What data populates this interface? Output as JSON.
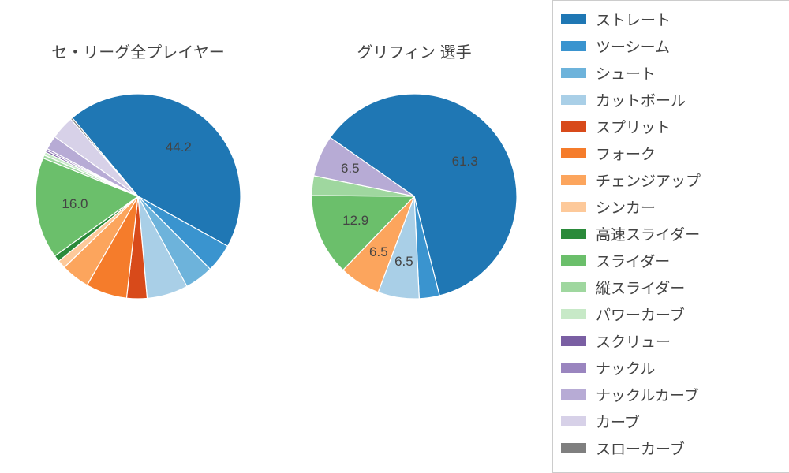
{
  "chart1": {
    "title": "セ・リーグ全プレイヤー",
    "type": "pie",
    "startAngleDeg": -40,
    "direction": "clockwise",
    "radius": 130,
    "slices": [
      {
        "name": "ストレート",
        "value": 44.2,
        "color": "#1f77b4",
        "label": "44.2",
        "labelR": 0.62
      },
      {
        "name": "ツーシーム",
        "value": 4.5,
        "color": "#3a94cf"
      },
      {
        "name": "シュート",
        "value": 4.5,
        "color": "#6db3db"
      },
      {
        "name": "カットボール",
        "value": 6.5,
        "color": "#a9cfe7"
      },
      {
        "name": "スプリット",
        "value": 3.2,
        "color": "#d84a1a"
      },
      {
        "name": "フォーク",
        "value": 6.5,
        "color": "#f57c2b"
      },
      {
        "name": "チェンジアップ",
        "value": 4.5,
        "color": "#fca55d"
      },
      {
        "name": "シンカー",
        "value": 1.3,
        "color": "#fdc99a"
      },
      {
        "name": "高速スライダー",
        "value": 1.0,
        "color": "#2a8a3a"
      },
      {
        "name": "スライダー",
        "value": 16.0,
        "color": "#6bbf6b",
        "label": "16.0",
        "labelR": 0.62
      },
      {
        "name": "縦スライダー",
        "value": 0.5,
        "color": "#9fd79f"
      },
      {
        "name": "パワーカーブ",
        "value": 0.5,
        "color": "#c7e9c7"
      },
      {
        "name": "スクリュー",
        "value": 0.3,
        "color": "#7a5fa3"
      },
      {
        "name": "ナックル",
        "value": 0.3,
        "color": "#9a85bf"
      },
      {
        "name": "ナックルカーブ",
        "value": 2.2,
        "color": "#b7abd5"
      },
      {
        "name": "カーブ",
        "value": 3.7,
        "color": "#d7d1e8"
      },
      {
        "name": "スローカーブ",
        "value": 0.3,
        "color": "#7f7f7f"
      }
    ]
  },
  "chart2": {
    "title": "グリフィン 選手",
    "type": "pie",
    "startAngleDeg": -55,
    "direction": "clockwise",
    "radius": 130,
    "slices": [
      {
        "name": "ストレート",
        "value": 61.3,
        "color": "#1f77b4",
        "label": "61.3",
        "labelR": 0.6
      },
      {
        "name": "ツーシーム",
        "value": 3.2,
        "color": "#3a94cf"
      },
      {
        "name": "カットボール",
        "value": 6.5,
        "color": "#a9cfe7",
        "label": "6.5",
        "labelR": 0.65
      },
      {
        "name": "チェンジアップ",
        "value": 6.5,
        "color": "#fca55d",
        "label": "6.5",
        "labelR": 0.65
      },
      {
        "name": "スライダー",
        "value": 12.9,
        "color": "#6bbf6b",
        "label": "12.9",
        "labelR": 0.62
      },
      {
        "name": "縦スライダー",
        "value": 3.1,
        "color": "#9fd79f"
      },
      {
        "name": "ナックルカーブ",
        "value": 6.5,
        "color": "#b7abd5",
        "label": "6.5",
        "labelR": 0.68
      }
    ]
  },
  "legend": {
    "items": [
      {
        "label": "ストレート",
        "color": "#1f77b4"
      },
      {
        "label": "ツーシーム",
        "color": "#3a94cf"
      },
      {
        "label": "シュート",
        "color": "#6db3db"
      },
      {
        "label": "カットボール",
        "color": "#a9cfe7"
      },
      {
        "label": "スプリット",
        "color": "#d84a1a"
      },
      {
        "label": "フォーク",
        "color": "#f57c2b"
      },
      {
        "label": "チェンジアップ",
        "color": "#fca55d"
      },
      {
        "label": "シンカー",
        "color": "#fdc99a"
      },
      {
        "label": "高速スライダー",
        "color": "#2a8a3a"
      },
      {
        "label": "スライダー",
        "color": "#6bbf6b"
      },
      {
        "label": "縦スライダー",
        "color": "#9fd79f"
      },
      {
        "label": "パワーカーブ",
        "color": "#c7e9c7"
      },
      {
        "label": "スクリュー",
        "color": "#7a5fa3"
      },
      {
        "label": "ナックル",
        "color": "#9a85bf"
      },
      {
        "label": "ナックルカーブ",
        "color": "#b7abd5"
      },
      {
        "label": "カーブ",
        "color": "#d7d1e8"
      },
      {
        "label": "スローカーブ",
        "color": "#7f7f7f"
      }
    ]
  },
  "style": {
    "background": "#ffffff",
    "titleFontSize": 20,
    "labelFontSize": 17,
    "legendFontSize": 19,
    "textColor": "#444444"
  }
}
